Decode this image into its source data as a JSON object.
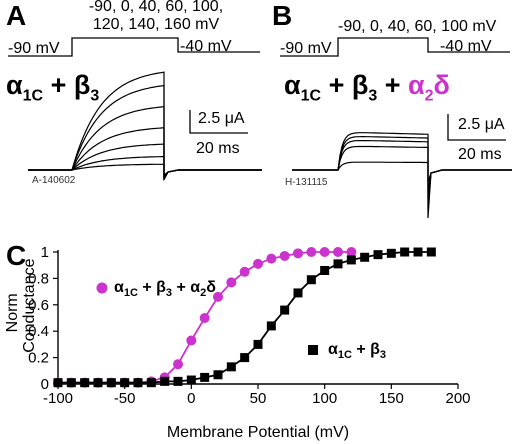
{
  "panel_a": {
    "letter": "A",
    "voltages_line1": "-90, 0, 40, 60, 100,",
    "voltages_line2": "120, 140, 160 mV",
    "hold_label": "-90 mV",
    "tail_label": "-40 mV",
    "construct_alpha": "α",
    "construct_sub": "1C",
    "construct_rest": " + β",
    "construct_sub2": "3",
    "scale_current": "2.5 μA",
    "scale_time": "20 ms",
    "cell_id": "A-140602"
  },
  "panel_b": {
    "letter": "B",
    "voltages": "-90, 0, 40, 60, 100 mV",
    "hold_label": "-90 mV",
    "tail_label": "-40 mV",
    "construct_alpha": "α",
    "construct_sub": "1C",
    "construct_rest": " + β",
    "construct_sub2": "3",
    "construct_plus": " + ",
    "construct_a2d": "α",
    "construct_a2d_sub": "2",
    "construct_a2d_rest": "δ",
    "scale_current": "2.5 μA",
    "scale_time": "20 ms",
    "cell_id": "H-131115"
  },
  "colors": {
    "magenta": "#cc33cc",
    "black": "#000000"
  },
  "chart_data": {
    "type": "scatter",
    "panel_letter": "C",
    "xlabel": "Membrane Potential (mV)",
    "ylabel_line1": "Norm",
    "ylabel_line2": "Conductance",
    "xlim": [
      -100,
      200
    ],
    "ylim": [
      0,
      1
    ],
    "x_ticks": [
      "-100",
      "-50",
      "0",
      "50",
      "100",
      "150",
      "200"
    ],
    "y_ticks": [
      "0",
      "0.2",
      "0.4",
      "0.6",
      "0.8",
      "1"
    ],
    "series": [
      {
        "name_alpha": "α",
        "name_sub": "1C",
        "name_rest": " + β",
        "name_sub2": "3",
        "name_plus": " + α",
        "name_sub3": "2",
        "name_end": "δ",
        "marker": "circle",
        "color": "#cc33cc",
        "x": [
          -100,
          -90,
          -80,
          -70,
          -60,
          -50,
          -40,
          -30,
          -20,
          -10,
          0,
          10,
          20,
          30,
          40,
          50,
          60,
          70,
          80,
          90,
          100,
          110,
          120
        ],
        "y": [
          0.01,
          0.01,
          0.01,
          0.01,
          0.01,
          0.01,
          0.01,
          0.02,
          0.05,
          0.15,
          0.33,
          0.5,
          0.66,
          0.77,
          0.85,
          0.91,
          0.95,
          0.97,
          0.99,
          1.0,
          1.0,
          1.0,
          1.0
        ]
      },
      {
        "name_alpha": "α",
        "name_sub": "1C",
        "name_rest": " + β",
        "name_sub2": "3",
        "marker": "square",
        "color": "#000000",
        "x": [
          -100,
          -90,
          -80,
          -70,
          -60,
          -50,
          -40,
          -30,
          -20,
          -10,
          0,
          10,
          20,
          30,
          40,
          50,
          60,
          70,
          80,
          90,
          100,
          110,
          120,
          130,
          140,
          150,
          160,
          170,
          180
        ],
        "y": [
          0.01,
          0.01,
          0.01,
          0.01,
          0.01,
          0.01,
          0.01,
          0.01,
          0.02,
          0.02,
          0.03,
          0.05,
          0.07,
          0.13,
          0.2,
          0.3,
          0.44,
          0.56,
          0.69,
          0.79,
          0.86,
          0.91,
          0.94,
          0.96,
          0.98,
          0.99,
          1.0,
          1.0,
          1.0
        ]
      }
    ]
  }
}
